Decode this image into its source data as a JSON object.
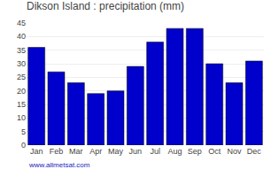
{
  "chart_data": {
    "type": "bar",
    "title": "Dikson Island : precipitation (mm)",
    "categories": [
      "Jan",
      "Feb",
      "Mar",
      "Apr",
      "May",
      "Jun",
      "Jul",
      "Aug",
      "Sep",
      "Oct",
      "Nov",
      "Dec"
    ],
    "values": [
      36,
      27,
      23,
      19,
      20,
      29,
      38,
      43,
      43,
      30,
      23,
      31
    ],
    "color": "#0000CC",
    "ylim": [
      0,
      45
    ],
    "yticks": [
      0,
      5,
      10,
      15,
      20,
      25,
      30,
      35,
      40,
      45
    ],
    "grid": true,
    "annotations": [
      "www.allmetsat.com"
    ]
  }
}
